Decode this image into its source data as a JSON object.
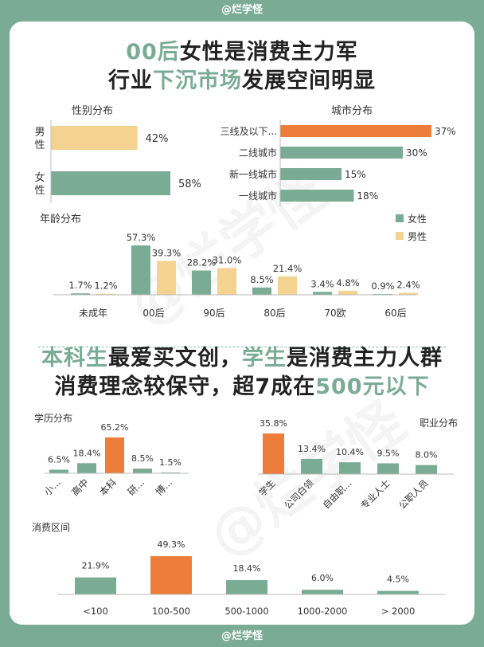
{
  "brand": "@烂学怪",
  "headline1": {
    "line1": [
      {
        "t": "00后",
        "hl": true
      },
      {
        "t": "女性是消费主力军",
        "hl": false
      }
    ],
    "line2": [
      {
        "t": "行业",
        "hl": false
      },
      {
        "t": "下沉市场",
        "hl": true
      },
      {
        "t": "发展空间明显",
        "hl": false
      }
    ]
  },
  "headline2": {
    "line1": [
      {
        "t": "本科生",
        "hl": true
      },
      {
        "t": "最爱买文创，",
        "hl": false
      },
      {
        "t": "学生",
        "hl": true
      },
      {
        "t": "是消费主力人群",
        "hl": false
      }
    ],
    "line2": [
      {
        "t": "消费理念较保守，超7成在",
        "hl": false
      },
      {
        "t": "500元以下",
        "hl": true
      }
    ]
  },
  "colors": {
    "green": "#7aab94",
    "yellow": "#f3d38f",
    "orange": "#ed7d3a",
    "text": "#333333"
  },
  "chart_data": [
    {
      "id": "gender",
      "type": "bar",
      "orientation": "horizontal",
      "title": "性别分布",
      "categories": [
        "男性",
        "女性"
      ],
      "values": [
        42,
        58
      ],
      "labels": [
        "42%",
        "58%"
      ],
      "colors": [
        "#f3d38f",
        "#7aab94"
      ]
    },
    {
      "id": "city",
      "type": "bar",
      "orientation": "horizontal",
      "title": "城市分布",
      "categories": [
        "三线及以下...",
        "二线城市",
        "新一线城市",
        "一线城市"
      ],
      "values": [
        37,
        30,
        15,
        18
      ],
      "labels": [
        "37%",
        "30%",
        "15%",
        "18%"
      ],
      "colors": [
        "#ed7d3a",
        "#7aab94",
        "#7aab94",
        "#7aab94"
      ]
    },
    {
      "id": "age",
      "type": "bar",
      "title": "年龄分布",
      "categories": [
        "未成年",
        "00后",
        "90后",
        "80后",
        "70欧",
        "60后"
      ],
      "series": [
        {
          "name": "女性",
          "values": [
            1.7,
            57.3,
            28.2,
            8.5,
            3.4,
            0.9
          ],
          "labels": [
            "1.7%",
            "57.3%",
            "28.2%",
            "8.5%",
            "3.4%",
            "0.9%"
          ],
          "color": "#7aab94"
        },
        {
          "name": "男性",
          "values": [
            1.2,
            39.3,
            31.0,
            21.4,
            4.8,
            2.4
          ],
          "labels": [
            "1.2%",
            "39.3%",
            "31.0%",
            "21.4%",
            "4.8%",
            "2.4%"
          ],
          "color": "#f3d38f"
        }
      ],
      "legend": "top-right"
    },
    {
      "id": "edu",
      "type": "bar",
      "title": "学历分布",
      "categories": [
        "小...",
        "高中",
        "本科",
        "研...",
        "博..."
      ],
      "values": [
        6.5,
        18.4,
        65.2,
        8.5,
        1.5
      ],
      "labels": [
        "6.5%",
        "18.4%",
        "65.2%",
        "8.5%",
        "1.5%"
      ],
      "colors": [
        "#7aab94",
        "#7aab94",
        "#ed7d3a",
        "#7aab94",
        "#7aab94"
      ]
    },
    {
      "id": "job",
      "type": "bar",
      "title": "职业分布",
      "categories": [
        "学生",
        "公司白领",
        "自由职...",
        "专业人士",
        "公职人员"
      ],
      "values": [
        35.8,
        13.4,
        10.4,
        9.5,
        8.0
      ],
      "labels": [
        "35.8%",
        "13.4%",
        "10.4%",
        "9.5%",
        "8.0%"
      ],
      "colors": [
        "#ed7d3a",
        "#7aab94",
        "#7aab94",
        "#7aab94",
        "#7aab94"
      ]
    },
    {
      "id": "spend",
      "type": "bar",
      "title": "消费区间",
      "categories": [
        "<100",
        "100-500",
        "500-1000",
        "1000-2000",
        "> 2000"
      ],
      "values": [
        21.9,
        49.3,
        18.4,
        6.0,
        4.5
      ],
      "labels": [
        "21.9%",
        "49.3%",
        "18.4%",
        "6.0%",
        "4.5%"
      ],
      "colors": [
        "#7aab94",
        "#ed7d3a",
        "#7aab94",
        "#7aab94",
        "#7aab94"
      ]
    }
  ]
}
